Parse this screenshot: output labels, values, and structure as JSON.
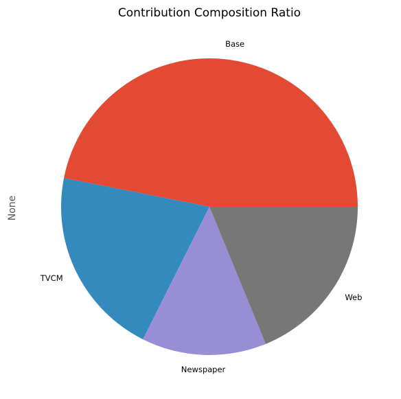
{
  "chart_data": {
    "type": "pie",
    "title": "Contribution Composition Ratio",
    "ylabel": "None",
    "start_angle_deg": 0,
    "direction": "counterclockwise",
    "legend": "none",
    "slices": [
      {
        "label": "Base",
        "value": 46.9,
        "color": "#E24A33"
      },
      {
        "label": "TVCM",
        "value": 20.7,
        "color": "#348ABD"
      },
      {
        "label": "Newspaper",
        "value": 13.6,
        "color": "#988ED5"
      },
      {
        "label": "Web",
        "value": 18.8,
        "color": "#777777"
      }
    ]
  }
}
